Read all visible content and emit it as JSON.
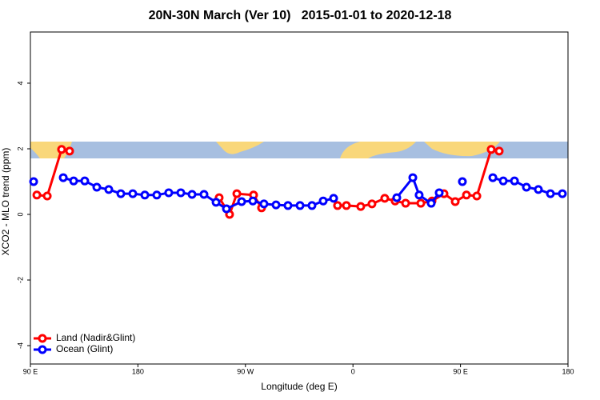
{
  "chart_data": {
    "type": "line",
    "title": "20N-30N March (Ver 10)   2015-01-01 to 2020-12-18",
    "xlabel": "Longitude (deg E)",
    "ylabel": "XCO2 - MLO trend (ppm)",
    "xlim": [
      90,
      540
    ],
    "xticks": [
      {
        "value": 90,
        "label": "90 E"
      },
      {
        "value": 180,
        "label": "180"
      },
      {
        "value": 270,
        "label": "90 W"
      },
      {
        "value": 360,
        "label": "0"
      },
      {
        "value": 450,
        "label": "90 E"
      },
      {
        "value": 540,
        "label": "180"
      }
    ],
    "ylim": [
      -4.56,
      5.56
    ],
    "yticks": [
      -4,
      -2,
      0,
      2,
      4
    ],
    "legend": "bottom-left",
    "series": [
      {
        "name": "Land (Nadir&Glint)",
        "color": "#ff0000",
        "x": [
          95.4,
          104.1,
          116.1,
          122.8,
          null,
          248.0,
          256.7,
          262.8,
          276.8,
          283.5,
          null,
          347.1,
          354.5,
          366.5,
          375.9,
          386.6,
          395.3,
          404.1,
          416.8,
          426.2,
          436.2,
          445.6,
          455.0,
          463.7,
          475.7,
          482.4
        ],
        "values": [
          0.59,
          0.56,
          1.98,
          1.93,
          null,
          0.51,
          0.0,
          0.63,
          0.59,
          0.2,
          null,
          0.27,
          0.27,
          0.24,
          0.32,
          0.49,
          0.41,
          0.34,
          0.34,
          0.41,
          0.63,
          0.39,
          0.59,
          0.56,
          1.98,
          1.93
        ]
      },
      {
        "name": "Ocean (Glint)",
        "color": "#0000ff",
        "x": [
          92.7,
          null,
          117.5,
          126.2,
          135.5,
          145.6,
          155.6,
          165.7,
          175.7,
          185.8,
          195.8,
          205.8,
          215.9,
          225.3,
          235.3,
          245.4,
          254.1,
          266.8,
          276.2,
          285.5,
          295.6,
          305.6,
          315.7,
          325.7,
          335.1,
          343.8,
          null,
          396.7,
          410.1,
          415.4,
          425.5,
          432.2,
          null,
          451.6,
          null,
          477.1,
          485.8,
          495.2,
          505.2,
          515.2,
          525.3,
          535.3
        ],
        "values": [
          1.0,
          null,
          1.12,
          1.02,
          1.02,
          0.83,
          0.76,
          0.63,
          0.63,
          0.59,
          0.59,
          0.66,
          0.66,
          0.61,
          0.61,
          0.37,
          0.17,
          0.39,
          0.41,
          0.32,
          0.29,
          0.27,
          0.27,
          0.27,
          0.41,
          0.49,
          null,
          0.51,
          1.12,
          0.59,
          0.34,
          0.66,
          null,
          1.0,
          null,
          1.12,
          1.02,
          1.02,
          0.83,
          0.76,
          0.63,
          0.63
        ]
      }
    ]
  }
}
